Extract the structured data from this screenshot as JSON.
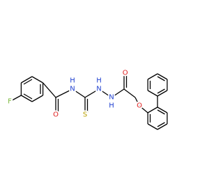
{
  "atoms": [
    {
      "label": "F"
    },
    {
      "label": "O"
    },
    {
      "label": "H"
    },
    {
      "label": "N"
    },
    {
      "label": "S"
    },
    {
      "label": "H"
    },
    {
      "label": "N"
    },
    {
      "label": "N"
    },
    {
      "label": "H"
    },
    {
      "label": "O"
    },
    {
      "label": "O"
    }
  ]
}
